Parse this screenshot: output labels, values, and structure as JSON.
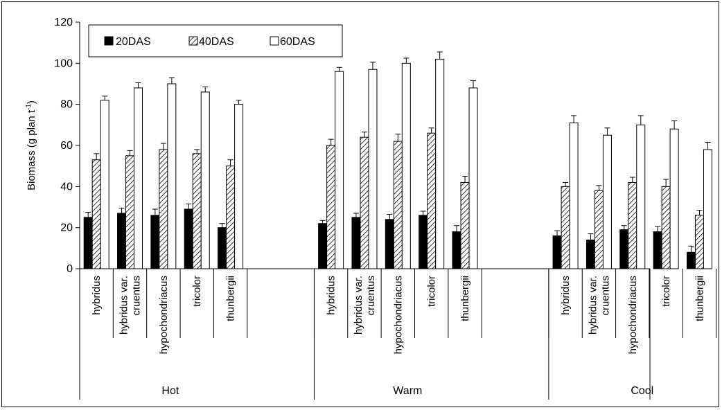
{
  "chart_data": {
    "type": "bar",
    "ylabel": "Biomass (g plan t",
    "ylabel_superscript": "-1",
    "ylabel_tail": ")",
    "ylim": [
      0,
      120
    ],
    "yticks": [
      0,
      20,
      40,
      60,
      80,
      100,
      120
    ],
    "grid": false,
    "legend_position": "top-left",
    "series_names": [
      "20DAS",
      "40DAS",
      "60DAS"
    ],
    "series_styles": [
      "solid-black",
      "diagonal-hatch",
      "white"
    ],
    "groups": [
      {
        "name": "Hot",
        "categories": [
          {
            "label": [
              "hybridus"
            ],
            "values": [
              25,
              53,
              82
            ],
            "errors": [
              2.5,
              3,
              2
            ]
          },
          {
            "label": [
              "hybridus var.",
              "cruentus"
            ],
            "values": [
              27,
              55,
              88
            ],
            "errors": [
              2.5,
              2.5,
              2.5
            ]
          },
          {
            "label": [
              "hypochondriacus"
            ],
            "values": [
              26,
              58,
              90
            ],
            "errors": [
              3,
              3,
              3
            ]
          },
          {
            "label": [
              "tricolor"
            ],
            "values": [
              29,
              56,
              86
            ],
            "errors": [
              2.5,
              2,
              2.5
            ]
          },
          {
            "label": [
              "thunbergii"
            ],
            "values": [
              20,
              50,
              80
            ],
            "errors": [
              2,
              3,
              2
            ]
          }
        ]
      },
      {
        "name": "Warm",
        "categories": [
          {
            "label": [
              "hybridus"
            ],
            "values": [
              22,
              60,
              96
            ],
            "errors": [
              1.5,
              3,
              2
            ]
          },
          {
            "label": [
              "hybridus var.",
              "cruentus"
            ],
            "values": [
              25,
              64,
              97
            ],
            "errors": [
              2,
              2.5,
              3.5
            ]
          },
          {
            "label": [
              "hypochondriacus"
            ],
            "values": [
              24,
              62,
              100
            ],
            "errors": [
              2.5,
              3.5,
              2.5
            ]
          },
          {
            "label": [
              "tricolor"
            ],
            "values": [
              26,
              66,
              102
            ],
            "errors": [
              2,
              2.5,
              3.5
            ]
          },
          {
            "label": [
              "thunbergii"
            ],
            "values": [
              18,
              42,
              88
            ],
            "errors": [
              3,
              3,
              3.5
            ]
          }
        ]
      },
      {
        "name": "Cool",
        "categories": [
          {
            "label": [
              "hybridus"
            ],
            "values": [
              16,
              40,
              71
            ],
            "errors": [
              2.5,
              2,
              3.5
            ]
          },
          {
            "label": [
              "hybridus var.",
              "cruentus"
            ],
            "values": [
              14,
              38,
              65
            ],
            "errors": [
              3,
              2.5,
              3.5
            ]
          },
          {
            "label": [
              "hypochondriacus"
            ],
            "values": [
              19,
              42,
              70
            ],
            "errors": [
              2,
              2.5,
              4.5
            ]
          },
          {
            "label": [
              "tricolor"
            ],
            "values": [
              18,
              40,
              68
            ],
            "errors": [
              2.5,
              3.5,
              4
            ]
          },
          {
            "label": [
              "thunbergii"
            ],
            "values": [
              8,
              26,
              58
            ],
            "errors": [
              3,
              2.5,
              3.5
            ]
          }
        ]
      }
    ]
  }
}
